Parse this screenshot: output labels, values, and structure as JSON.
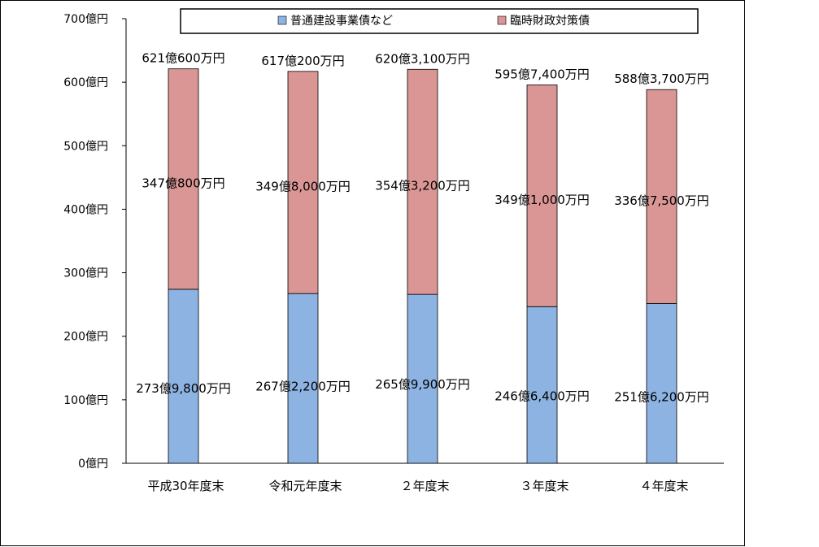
{
  "chart_data": {
    "type": "bar",
    "stacked": true,
    "categories": [
      "平成30年度末",
      "令和元年度末",
      "２年度末",
      "３年度末",
      "４年度末"
    ],
    "series": [
      {
        "name": "普通建設事業債など",
        "color": "#8db3e2",
        "values": [
          273.98,
          267.22,
          265.99,
          246.64,
          251.62
        ],
        "labels": [
          "273億9,800万円",
          "267億2,200万円",
          "265億9,900万円",
          "246億6,400万円",
          "251億6,200万円"
        ]
      },
      {
        "name": "臨時財政対策債",
        "color": "#da9694",
        "values": [
          347.08,
          349.8,
          354.32,
          349.1,
          336.75
        ],
        "labels": [
          "347億800万円",
          "349億8,000万円",
          "354億3,200万円",
          "349億1,000万円",
          "336億7,500万円"
        ]
      }
    ],
    "totals": [
      621.06,
      617.02,
      620.31,
      595.74,
      588.37
    ],
    "total_labels": [
      "621億600万円",
      "617億200万円",
      "620億3,100万円",
      "595億7,400万円",
      "588億3,700万円"
    ],
    "yticks": [
      0,
      100,
      200,
      300,
      400,
      500,
      600,
      700
    ],
    "ytick_labels": [
      "0億円",
      "100億円",
      "200億円",
      "300億円",
      "400億円",
      "500億円",
      "600億円",
      "700億円"
    ],
    "ylim": [
      0,
      700
    ],
    "legend_position": "top",
    "grid": false
  }
}
